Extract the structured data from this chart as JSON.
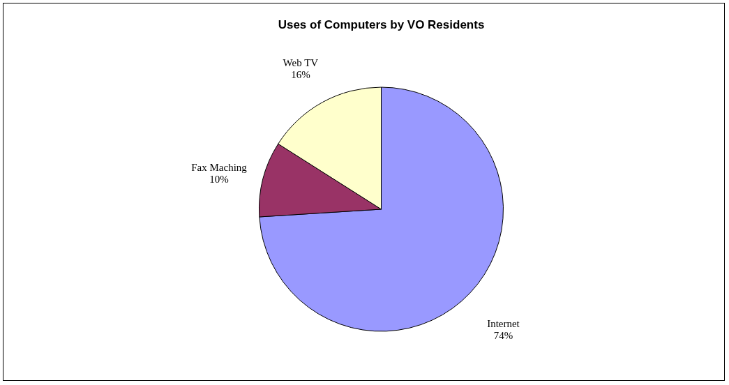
{
  "chart_data": {
    "type": "pie",
    "title": "Uses of Computers by VO Residents",
    "categories": [
      "Internet",
      "Fax Maching",
      "Web TV"
    ],
    "values": [
      74,
      10,
      16
    ],
    "value_labels": [
      "74%",
      "10%",
      "16%"
    ],
    "colors": [
      "#9999ff",
      "#993366",
      "#ffffcc"
    ]
  }
}
